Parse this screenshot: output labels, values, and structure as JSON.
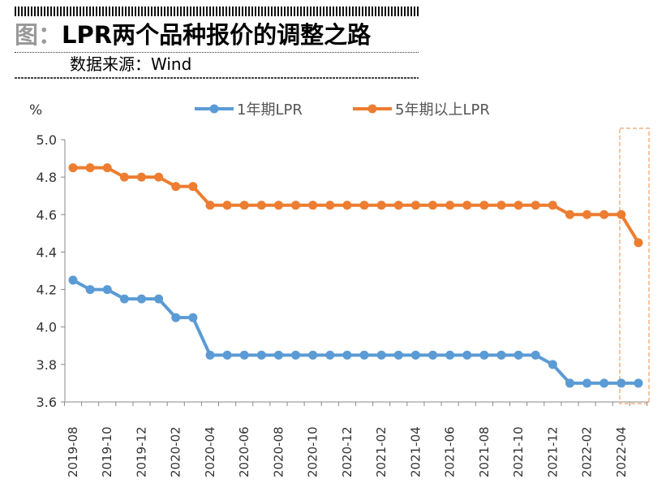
{
  "header": {
    "prefix": "图：",
    "title": "LPR两个品种报价的调整之路",
    "source": "数据来源：Wind"
  },
  "chart_data": {
    "type": "line",
    "ylabel": "%",
    "ylim": [
      3.6,
      5.0
    ],
    "yticks": [
      "5.0",
      "4.8",
      "4.6",
      "4.4",
      "4.2",
      "4.0",
      "3.8",
      "3.6"
    ],
    "x": [
      "2019-08",
      "2019-09",
      "2019-10",
      "2019-11",
      "2019-12",
      "2020-01",
      "2020-02",
      "2020-03",
      "2020-04",
      "2020-05",
      "2020-06",
      "2020-07",
      "2020-08",
      "2020-09",
      "2020-10",
      "2020-11",
      "2020-12",
      "2021-01",
      "2021-02",
      "2021-03",
      "2021-04",
      "2021-05",
      "2021-06",
      "2021-07",
      "2021-08",
      "2021-09",
      "2021-10",
      "2021-11",
      "2021-12",
      "2022-01",
      "2022-02",
      "2022-03",
      "2022-04",
      "2022-05"
    ],
    "xticks": [
      "2019-08",
      "2019-10",
      "2019-12",
      "2020-02",
      "2020-04",
      "2020-06",
      "2020-08",
      "2020-10",
      "2020-12",
      "2021-02",
      "2021-04",
      "2021-06",
      "2021-08",
      "2021-10",
      "2021-12",
      "2022-02",
      "2022-04"
    ],
    "series": [
      {
        "name": "1年期LPR",
        "color": "#5b9bd5",
        "values": [
          4.25,
          4.2,
          4.2,
          4.15,
          4.15,
          4.15,
          4.05,
          4.05,
          3.85,
          3.85,
          3.85,
          3.85,
          3.85,
          3.85,
          3.85,
          3.85,
          3.85,
          3.85,
          3.85,
          3.85,
          3.85,
          3.85,
          3.85,
          3.85,
          3.85,
          3.85,
          3.85,
          3.85,
          3.8,
          3.7,
          3.7,
          3.7,
          3.7,
          3.7
        ]
      },
      {
        "name": "5年期以上LPR",
        "color": "#ed7d31",
        "values": [
          4.85,
          4.85,
          4.85,
          4.8,
          4.8,
          4.8,
          4.75,
          4.75,
          4.65,
          4.65,
          4.65,
          4.65,
          4.65,
          4.65,
          4.65,
          4.65,
          4.65,
          4.65,
          4.65,
          4.65,
          4.65,
          4.65,
          4.65,
          4.65,
          4.65,
          4.65,
          4.65,
          4.65,
          4.65,
          4.6,
          4.6,
          4.6,
          4.6,
          4.45
        ]
      }
    ],
    "legend": "top",
    "grid": false,
    "highlight_color": "#f4b183"
  }
}
